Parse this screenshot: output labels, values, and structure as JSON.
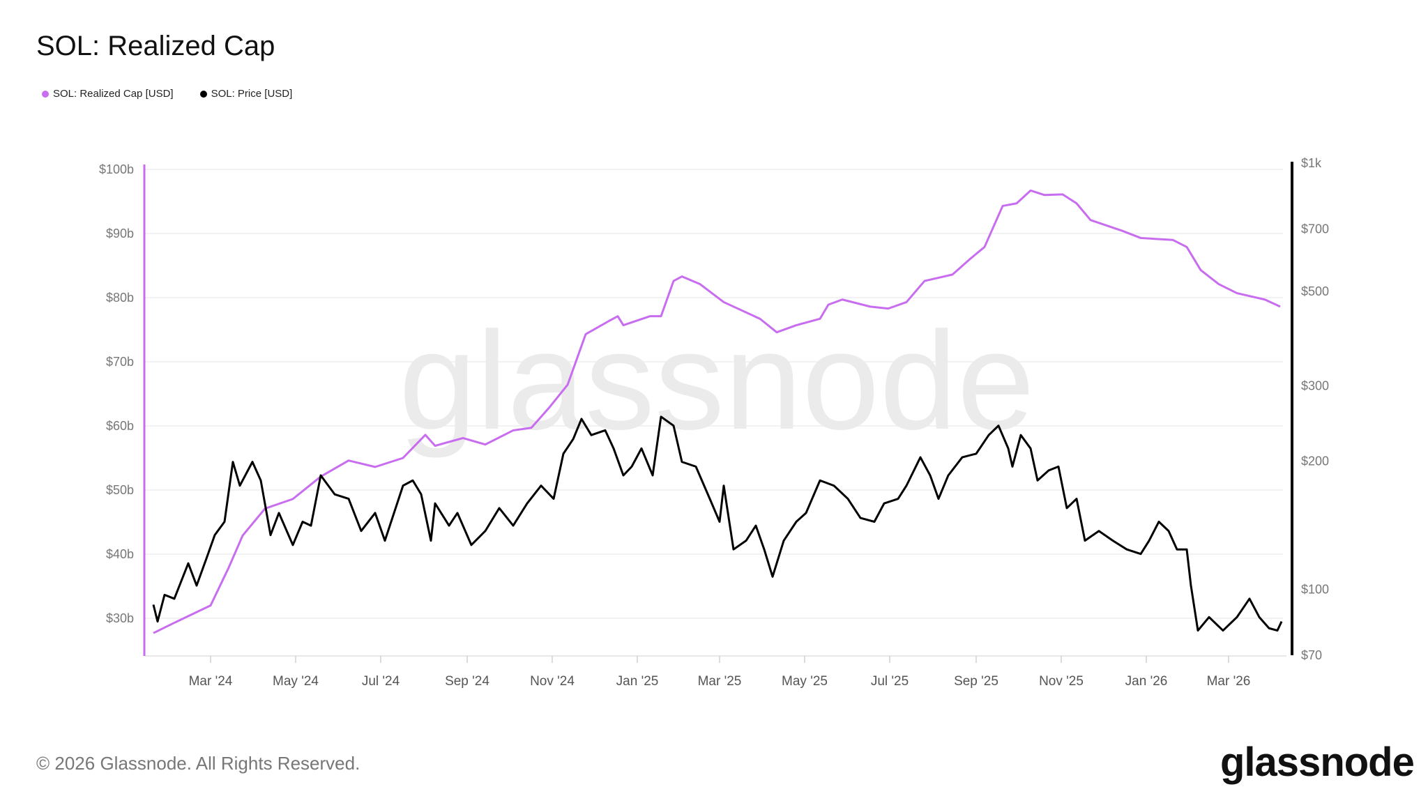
{
  "title": "SOL: Realized Cap",
  "footer": "© 2026 Glassnode. All Rights Reserved.",
  "logo": "glassnode",
  "watermark": "glassnode",
  "chart_data": {
    "type": "line",
    "title": "SOL: Realized Cap",
    "x_unit": "days since 2024-03-01",
    "legend": [
      {
        "name": "SOL: Realized Cap [USD]",
        "color": "#c86cf0"
      },
      {
        "name": "SOL: Price [USD]",
        "color": "#000000"
      }
    ],
    "legend_placement": "top-left",
    "x_ticks": [
      {
        "label": "Mar '24",
        "d": 0
      },
      {
        "label": "May '24",
        "d": 61
      },
      {
        "label": "Jul '24",
        "d": 122
      },
      {
        "label": "Sep '24",
        "d": 184
      },
      {
        "label": "Nov '24",
        "d": 245
      },
      {
        "label": "Jan '25",
        "d": 306
      },
      {
        "label": "Mar '25",
        "d": 365
      },
      {
        "label": "May '25",
        "d": 426
      },
      {
        "label": "Jul '25",
        "d": 487
      },
      {
        "label": "Sep '25",
        "d": 549
      },
      {
        "label": "Nov '25",
        "d": 610
      },
      {
        "label": "Jan '26",
        "d": 671
      },
      {
        "label": "Mar '26",
        "d": 730
      }
    ],
    "y_left": {
      "scale": "linear",
      "unit": "billion USD",
      "range": [
        24,
        101
      ],
      "ticks": [
        {
          "label": "$30b",
          "v": 30
        },
        {
          "label": "$40b",
          "v": 40
        },
        {
          "label": "$50b",
          "v": 50
        },
        {
          "label": "$60b",
          "v": 60
        },
        {
          "label": "$70b",
          "v": 70
        },
        {
          "label": "$80b",
          "v": 80
        },
        {
          "label": "$90b",
          "v": 90
        },
        {
          "label": "$100b",
          "v": 100
        }
      ]
    },
    "y_right": {
      "scale": "log",
      "unit": "USD",
      "range": [
        70,
        1000
      ],
      "ticks": [
        {
          "label": "$70",
          "v": 70
        },
        {
          "label": "$100",
          "v": 100
        },
        {
          "label": "$200",
          "v": 200
        },
        {
          "label": "$300",
          "v": 300
        },
        {
          "label": "$500",
          "v": 500
        },
        {
          "label": "$700",
          "v": 700
        },
        {
          "label": "$1k",
          "v": 1000
        }
      ]
    },
    "grid": true,
    "series": [
      {
        "name": "SOL: Realized Cap [USD]",
        "axis": "left",
        "d": [
          -41,
          -26,
          0,
          13,
          23,
          39,
          59,
          79,
          99,
          118,
          138,
          154,
          161,
          181,
          197,
          217,
          230,
          243,
          256,
          269,
          286,
          292,
          296,
          315,
          323,
          332,
          338,
          351,
          368,
          394,
          406,
          420,
          437,
          443,
          453,
          473,
          486,
          499,
          512,
          532,
          545,
          555,
          568,
          578,
          588,
          598,
          611,
          621,
          631,
          654,
          667,
          690,
          700,
          710,
          723,
          736,
          756,
          767
        ],
        "values": [
          27.7,
          29.3,
          32,
          37.9,
          42.9,
          47.1,
          48.6,
          52.1,
          54.6,
          53.6,
          55,
          58.6,
          56.9,
          58.1,
          57.1,
          59.3,
          59.7,
          62.9,
          66.4,
          74.3,
          76.4,
          77.1,
          75.7,
          77.1,
          77.1,
          82.6,
          83.3,
          82.1,
          79.3,
          76.7,
          74.6,
          75.7,
          76.7,
          78.9,
          79.7,
          78.6,
          78.3,
          79.3,
          82.6,
          83.6,
          86.1,
          87.9,
          94.3,
          94.7,
          96.7,
          96,
          96.1,
          94.7,
          92.1,
          90.4,
          89.3,
          89,
          87.9,
          84.3,
          82.1,
          80.7,
          79.7,
          78.6
        ]
      },
      {
        "name": "SOL: Price [USD]",
        "axis": "right",
        "d": [
          -41,
          -38,
          -33,
          -26,
          -16,
          -10,
          -3,
          3,
          10,
          16,
          21,
          30,
          36,
          43,
          49,
          59,
          66,
          72,
          79,
          89,
          99,
          108,
          118,
          125,
          138,
          145,
          151,
          158,
          161,
          171,
          177,
          187,
          197,
          207,
          217,
          227,
          237,
          246,
          253,
          260,
          266,
          273,
          283,
          289,
          296,
          302,
          309,
          317,
          323,
          332,
          338,
          348,
          358,
          365,
          368,
          375,
          384,
          391,
          397,
          403,
          411,
          420,
          427,
          437,
          447,
          457,
          466,
          476,
          483,
          493,
          499,
          509,
          516,
          522,
          529,
          539,
          549,
          558,
          565,
          572,
          575,
          581,
          588,
          593,
          601,
          608,
          614,
          621,
          627,
          637,
          647,
          657,
          667,
          673,
          680,
          687,
          693,
          700,
          703,
          708,
          716,
          726,
          736,
          745,
          752,
          759,
          765,
          768
        ],
        "values": [
          92,
          84,
          97,
          95,
          115,
          102,
          118,
          134,
          144,
          199,
          175,
          199,
          180,
          134,
          151,
          127,
          144,
          141,
          185,
          167,
          163,
          137,
          151,
          130,
          175,
          180,
          167,
          130,
          159,
          141,
          151,
          127,
          137,
          155,
          141,
          159,
          175,
          163,
          208,
          225,
          251,
          230,
          236,
          214,
          185,
          194,
          214,
          185,
          254,
          242,
          199,
          194,
          163,
          144,
          175,
          124,
          130,
          141,
          124,
          107,
          130,
          144,
          151,
          180,
          175,
          163,
          147,
          144,
          159,
          163,
          175,
          204,
          185,
          163,
          185,
          204,
          208,
          230,
          242,
          214,
          194,
          230,
          214,
          180,
          190,
          194,
          155,
          163,
          130,
          137,
          130,
          124,
          121,
          130,
          144,
          137,
          124,
          124,
          102,
          80,
          86,
          80,
          86,
          95,
          86,
          81,
          80,
          84
        ]
      }
    ]
  }
}
